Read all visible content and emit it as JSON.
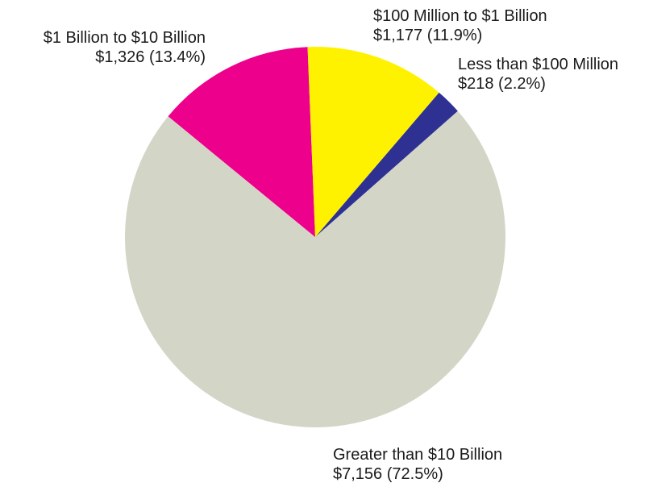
{
  "chart_data": {
    "type": "pie",
    "title": "",
    "slices": [
      {
        "name": "Less than $100 Million",
        "value": 218,
        "percent": 2.2,
        "value_label": "$218 (2.2%)",
        "color": "#2e3192"
      },
      {
        "name": "Greater than $10 Billion",
        "value": 7156,
        "percent": 72.5,
        "value_label": "$7,156 (72.5%)",
        "color": "#d3d6c6"
      },
      {
        "name": "$1 Billion to $10 Billion",
        "value": 1326,
        "percent": 13.4,
        "value_label": "$1,326 (13.4%)",
        "color": "#ec008c"
      },
      {
        "name": "$100 Million to $1 Billion",
        "value": 1177,
        "percent": 11.9,
        "value_label": "$1,177 (11.9%)",
        "color": "#fff200"
      }
    ],
    "legend": "none"
  }
}
